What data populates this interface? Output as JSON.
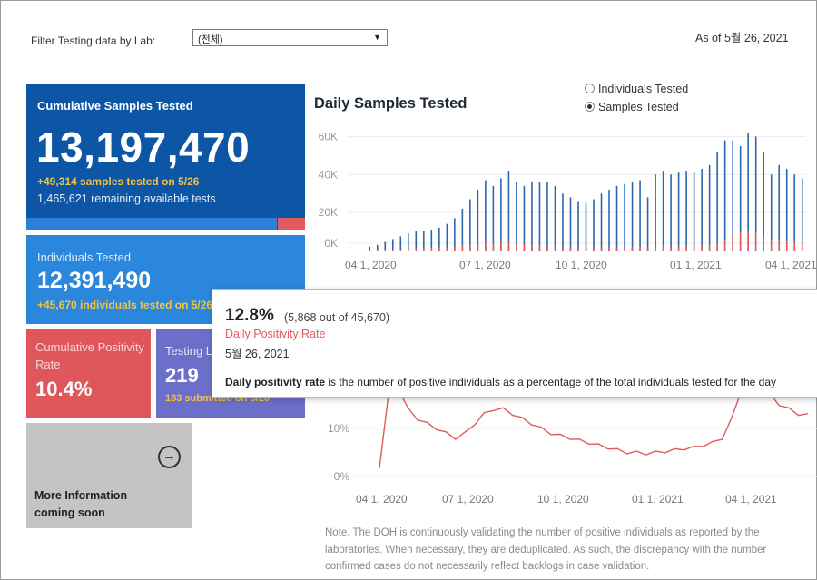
{
  "filter": {
    "label": "Filter Testing data by Lab:",
    "value": "(전체)"
  },
  "as_of": "As of 5월 26, 2021",
  "cards": {
    "cumulative": {
      "title": "Cumulative Samples Tested",
      "value": "13,197,470",
      "sub1": "+49,314 samples tested on 5/26",
      "sub2": "1,465,621 remaining available tests"
    },
    "individuals": {
      "title": "Individuals Tested",
      "value": "12,391,490",
      "sub1": "+45,670  individuals  tested on 5/26"
    },
    "positivity": {
      "title": "Cumulative Positivity Rate",
      "value": "10.4%"
    },
    "labs": {
      "title": "Testing Labs",
      "value": "219",
      "sub1": "183 submitted on 5/26"
    },
    "more": {
      "line1": "More Information",
      "line2": "coming soon"
    }
  },
  "chart": {
    "title": "Daily Samples Tested",
    "radio": {
      "option1": "Individuals Tested",
      "option2": "Samples Tested",
      "selected": "Samples Tested"
    }
  },
  "tooltip": {
    "rate": "12.8%",
    "detail": "(5,868 out of  45,670)",
    "label": "Daily Positivity Rate",
    "date": "5월 26, 2021",
    "desc_bold": "Daily positivity rate",
    "desc_rest": " is the number of positive individuals as a percentage of the total individuals tested for the day"
  },
  "note": {
    "line1": "Note. The DOH is continuously validating the number of positive individuals as reported by the",
    "line2": "laboratories. When necessary, they are deduplicated. As such, the discrepancy with the number",
    "line3": "confirmed cases do not necessarily reflect backlogs in case validation."
  },
  "colors": {
    "samples": "#2a66b0",
    "positives": "#e05a5e",
    "accent_yellow": "#f4c242"
  },
  "chart_data": [
    {
      "type": "bar",
      "title": "Daily Samples Tested",
      "x_ticks": [
        "04 1, 2020",
        "07 1, 2020",
        "10 1, 2020",
        "01 1, 2021",
        "04 1, 2021"
      ],
      "y_ticks": [
        "0K",
        "20K",
        "40K",
        "60K"
      ],
      "ylim": [
        0,
        65000
      ],
      "series": [
        {
          "name": "Samples Tested",
          "values": [
            2000,
            3000,
            4500,
            6000,
            7500,
            9000,
            10000,
            10500,
            11000,
            12000,
            14000,
            17000,
            22000,
            27000,
            32000,
            37000,
            34000,
            38000,
            42000,
            36000,
            34000,
            36000,
            36000,
            36000,
            34000,
            30000,
            28000,
            26000,
            25000,
            27000,
            30000,
            32000,
            34000,
            35000,
            36000,
            37000,
            28000,
            40000,
            42000,
            40000,
            41000,
            42000,
            41000,
            43000,
            45000,
            52000,
            58000,
            58000,
            55000,
            62000,
            60000,
            52000,
            40000,
            45000,
            43000,
            40000,
            38000
          ]
        },
        {
          "name": "Positives",
          "values": [
            500,
            500,
            600,
            700,
            900,
            1100,
            1200,
            1300,
            1400,
            1500,
            1700,
            2000,
            2500,
            3100,
            3700,
            4200,
            3900,
            4300,
            4600,
            3800,
            3300,
            3100,
            2800,
            2600,
            2300,
            2000,
            1800,
            1600,
            1500,
            1500,
            1600,
            1700,
            1800,
            1900,
            2000,
            2100,
            1800,
            2200,
            2400,
            2200,
            2200,
            2400,
            2500,
            2700,
            3000,
            4000,
            5500,
            8000,
            9500,
            10000,
            9500,
            8000,
            6000,
            5500,
            5000,
            4500,
            4300
          ]
        }
      ]
    },
    {
      "type": "line",
      "title": "Daily Positivity Rate",
      "x_ticks": [
        "04 1, 2020",
        "07 1, 2020",
        "10 1, 2020",
        "01 1, 2021",
        "04 1, 2021"
      ],
      "y_ticks": [
        "0%",
        "10%"
      ],
      "series": [
        {
          "name": "Daily Positivity Rate",
          "values": [
            2,
            28,
            19,
            14,
            12,
            11,
            10,
            9,
            8,
            9,
            11,
            13,
            14,
            14,
            13,
            12,
            11,
            10,
            9,
            8.5,
            8,
            7.5,
            7,
            6.5,
            6,
            5.5,
            5,
            5,
            4.8,
            5,
            5.2,
            5.5,
            5.8,
            6,
            6.5,
            7,
            8,
            12,
            18,
            22,
            20,
            17,
            15,
            14,
            13,
            12.8
          ]
        }
      ]
    }
  ]
}
